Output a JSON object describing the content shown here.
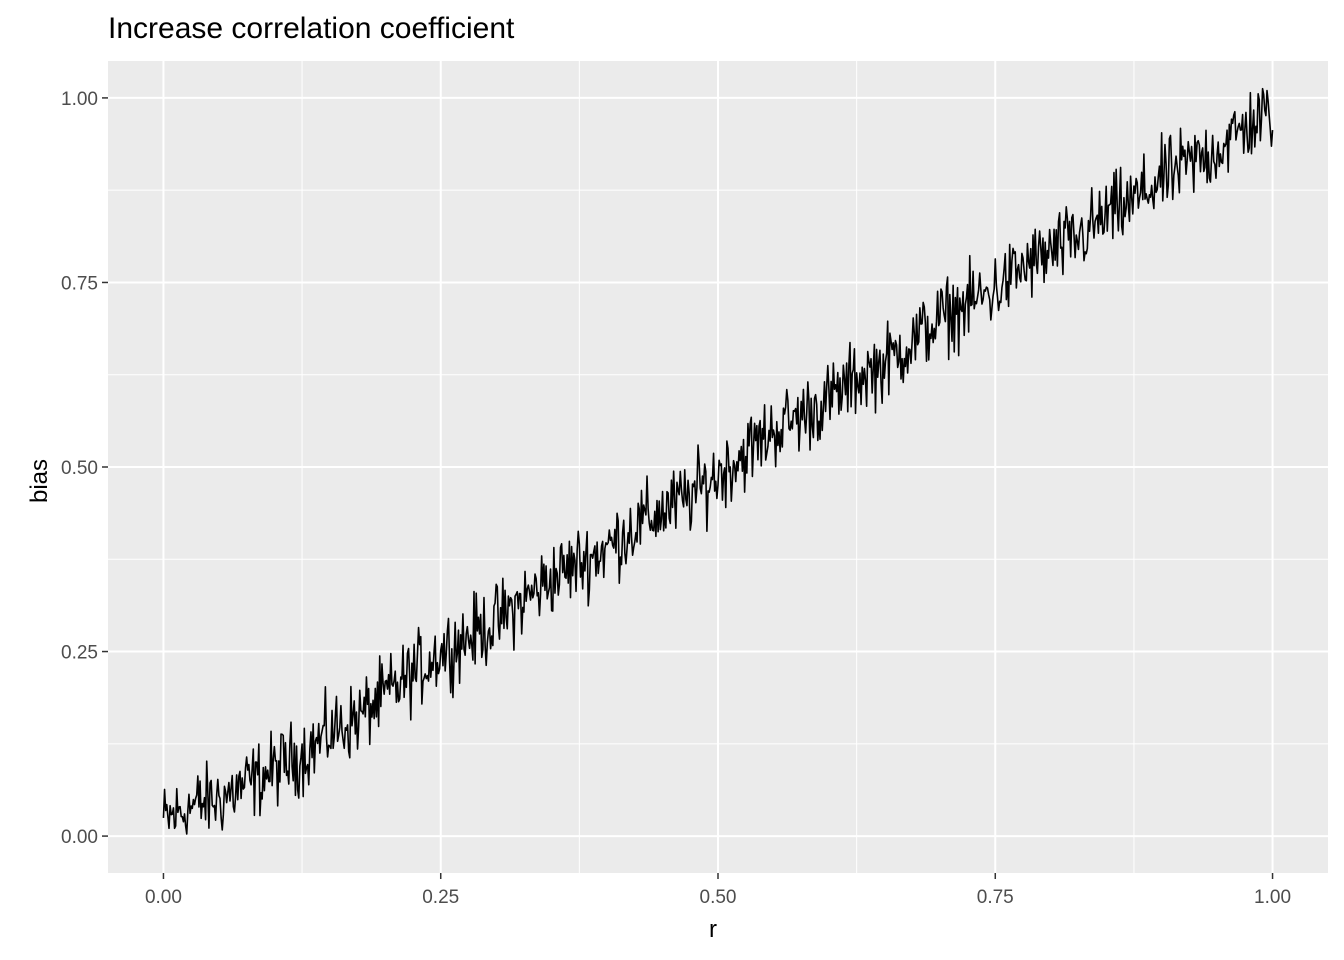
{
  "chart_data": {
    "type": "line",
    "title": "Increase correlation coefficient",
    "xlabel": "r",
    "ylabel": "bias",
    "xlim": [
      -0.05,
      1.05
    ],
    "ylim": [
      -0.05,
      1.05
    ],
    "x_ticks": [
      "0.00",
      "0.25",
      "0.50",
      "0.75",
      "1.00"
    ],
    "y_ticks": [
      "0.00",
      "0.25",
      "0.50",
      "0.75",
      "1.00"
    ],
    "grid": true,
    "background": "#ebebeb",
    "line_color": "#000000",
    "series": [
      {
        "x": [
          0.0,
          0.025,
          0.05,
          0.075,
          0.1,
          0.125,
          0.15,
          0.175,
          0.2,
          0.225,
          0.25,
          0.275,
          0.3,
          0.325,
          0.35,
          0.375,
          0.4,
          0.425,
          0.45,
          0.475,
          0.5,
          0.525,
          0.55,
          0.575,
          0.6,
          0.625,
          0.65,
          0.675,
          0.7,
          0.725,
          0.75,
          0.775,
          0.8,
          0.825,
          0.85,
          0.875,
          0.9,
          0.925,
          0.95,
          0.975,
          1.0
        ],
        "values": [
          0.02,
          0.04,
          0.05,
          0.07,
          0.09,
          0.11,
          0.14,
          0.16,
          0.19,
          0.22,
          0.25,
          0.27,
          0.29,
          0.32,
          0.35,
          0.37,
          0.39,
          0.42,
          0.44,
          0.46,
          0.49,
          0.52,
          0.55,
          0.57,
          0.59,
          0.62,
          0.64,
          0.67,
          0.7,
          0.72,
          0.74,
          0.77,
          0.79,
          0.81,
          0.84,
          0.86,
          0.89,
          0.91,
          0.93,
          0.96,
          0.98
        ]
      }
    ]
  }
}
